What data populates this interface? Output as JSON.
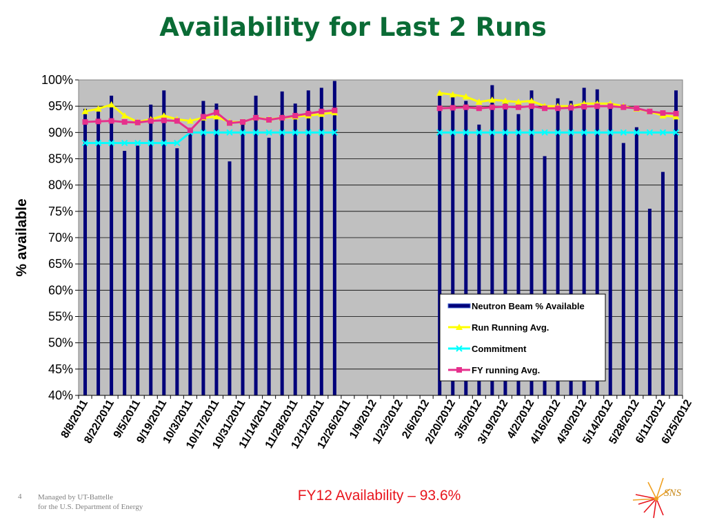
{
  "title": "Availability for Last 2 Runs",
  "subtitle": "FY12 Availability – 93.6%",
  "footer": {
    "slide_number": "4",
    "line1": "Managed by UT-Battelle",
    "line2": "for the U.S. Department of Energy"
  },
  "logo": {
    "text": "SNS",
    "icon": "sns-starburst-logo"
  },
  "colors": {
    "title": "#0a6b35",
    "subtitle": "#e8141c",
    "plot_bg": "#c0c0c0",
    "bar": "#00007a",
    "run_avg": "#ffff00",
    "commitment": "#00ffff",
    "fy_avg": "#e6308c"
  },
  "chart_data": {
    "type": "bar",
    "ylabel": "% available",
    "ylim": [
      40,
      100
    ],
    "yticks": [
      "40%",
      "45%",
      "50%",
      "55%",
      "60%",
      "65%",
      "70%",
      "75%",
      "80%",
      "85%",
      "90%",
      "95%",
      "100%"
    ],
    "xtick_labels": [
      "8/8/2011",
      "8/22/2011",
      "9/5/2011",
      "9/19/2011",
      "10/3/2011",
      "10/17/2011",
      "10/31/2011",
      "11/14/2011",
      "11/28/2011",
      "12/12/2011",
      "12/26/2011",
      "1/9/2012",
      "1/23/2012",
      "2/6/2012",
      "2/20/2012",
      "3/5/2012",
      "3/19/2012",
      "4/2/2012",
      "4/16/2012",
      "4/30/2012",
      "5/14/2012",
      "5/28/2012",
      "6/11/2012",
      "6/25/2012"
    ],
    "legend": [
      "Neutron Beam % Available",
      "Run Running Avg.",
      "Commitment",
      "FY running Avg."
    ],
    "legend_position": "lower-right",
    "grid": true,
    "series": [
      {
        "name": "Neutron Beam % Available",
        "type": "bar",
        "values": [
          94.5,
          94.5,
          97,
          86.5,
          87.5,
          95.3,
          98,
          87,
          90.5,
          96,
          95.5,
          84.5,
          92,
          97,
          89,
          97.8,
          95.5,
          98,
          98.5,
          99.8,
          null,
          null,
          null,
          null,
          null,
          null,
          null,
          97,
          97,
          96,
          91.5,
          99,
          96,
          93.5,
          98,
          85.5,
          96.5,
          96,
          98.5,
          98.2,
          95,
          88,
          91,
          75.5,
          82.5,
          98
        ]
      },
      {
        "name": "Run Running Avg.",
        "type": "line",
        "values": [
          94,
          94.5,
          95.3,
          93.2,
          92,
          92.5,
          93.2,
          92.5,
          92.2,
          92.8,
          93,
          92,
          92,
          92.8,
          92.5,
          92.8,
          93,
          93.2,
          93.5,
          93.8,
          null,
          null,
          null,
          null,
          null,
          null,
          null,
          97.5,
          97.2,
          96.8,
          95.8,
          96.2,
          96,
          95.8,
          96,
          95,
          95,
          95,
          95.5,
          95.5,
          95.5,
          95,
          94.5,
          94,
          93.2,
          93
        ]
      },
      {
        "name": "Commitment",
        "type": "line",
        "values": [
          88,
          88,
          88,
          88,
          88,
          88,
          88,
          88,
          90,
          90,
          90,
          90,
          90,
          90,
          90,
          90,
          90,
          90,
          90,
          90,
          null,
          null,
          null,
          null,
          null,
          null,
          null,
          90,
          90,
          90,
          90,
          90,
          90,
          90,
          90,
          90,
          90,
          90,
          90,
          90,
          90,
          90,
          90,
          90,
          90,
          90
        ]
      },
      {
        "name": "FY running Avg.",
        "type": "line",
        "values": [
          92,
          92.1,
          92.2,
          92,
          91.9,
          92.2,
          92.3,
          92.2,
          90.4,
          93,
          93.8,
          91.8,
          92,
          92.8,
          92.4,
          92.8,
          93.2,
          93.6,
          94,
          94.2,
          null,
          null,
          null,
          null,
          null,
          null,
          null,
          94.6,
          94.7,
          94.8,
          94.6,
          94.8,
          94.9,
          94.8,
          95,
          94.6,
          94.6,
          94.7,
          94.9,
          95,
          95,
          94.8,
          94.6,
          94,
          93.7,
          93.6
        ]
      }
    ]
  }
}
